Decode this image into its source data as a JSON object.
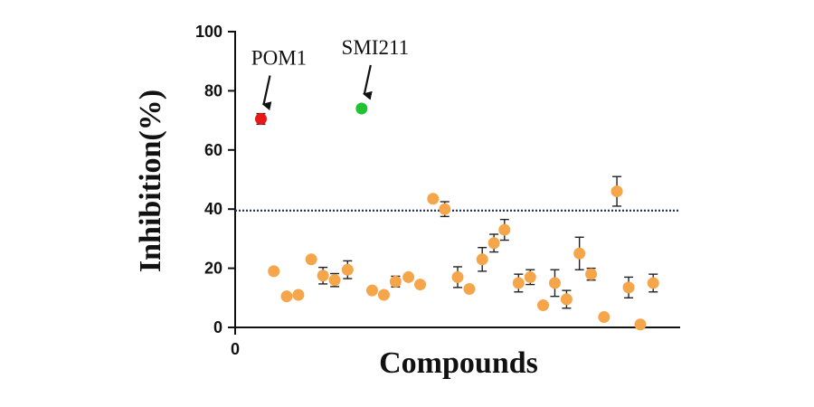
{
  "chart_data": {
    "type": "scatter",
    "xlabel": "Compounds",
    "ylabel": "Inhibition(%)",
    "ylim": [
      0,
      100
    ],
    "xlim": [
      0,
      38
    ],
    "yticks": [
      "0",
      "20",
      "40",
      "60",
      "80",
      "100"
    ],
    "xticks": [
      "0"
    ],
    "threshold": {
      "y": 39.5,
      "style": "dotted",
      "color": "#1f2d5c"
    },
    "controls": [
      {
        "label": "POM1",
        "x": 2.2,
        "y": 70.5,
        "err": 1.8,
        "color": "#e81818"
      },
      {
        "label": "SMI211",
        "x": 10.8,
        "y": 74,
        "err": 0,
        "color": "#22c232"
      }
    ],
    "series": [
      {
        "color": "#f5a54a",
        "points": [
          {
            "x": 3.3,
            "y": 19,
            "err": 0
          },
          {
            "x": 4.4,
            "y": 10.5,
            "err": 0
          },
          {
            "x": 5.4,
            "y": 11,
            "err": 0
          },
          {
            "x": 6.5,
            "y": 23,
            "err": 0
          },
          {
            "x": 7.5,
            "y": 17.5,
            "err": 2.8
          },
          {
            "x": 8.5,
            "y": 16,
            "err": 2.2
          },
          {
            "x": 9.6,
            "y": 19.5,
            "err": 3
          },
          {
            "x": 11.7,
            "y": 12.5,
            "err": 0
          },
          {
            "x": 12.7,
            "y": 11,
            "err": 0
          },
          {
            "x": 13.7,
            "y": 15.5,
            "err": 1.8
          },
          {
            "x": 14.8,
            "y": 17,
            "err": 0
          },
          {
            "x": 15.8,
            "y": 14.5,
            "err": 0
          },
          {
            "x": 16.9,
            "y": 43.5,
            "err": 0
          },
          {
            "x": 17.9,
            "y": 40,
            "err": 2.5
          },
          {
            "x": 19.0,
            "y": 17,
            "err": 3.5
          },
          {
            "x": 20.0,
            "y": 13,
            "err": 0
          },
          {
            "x": 21.1,
            "y": 23,
            "err": 4
          },
          {
            "x": 22.1,
            "y": 28.5,
            "err": 3
          },
          {
            "x": 23.0,
            "y": 33,
            "err": 3.5
          },
          {
            "x": 24.2,
            "y": 15,
            "err": 3
          },
          {
            "x": 25.2,
            "y": 17,
            "err": 2.5
          },
          {
            "x": 26.3,
            "y": 7.5,
            "err": 0
          },
          {
            "x": 27.3,
            "y": 15,
            "err": 4.5
          },
          {
            "x": 28.3,
            "y": 9.5,
            "err": 3
          },
          {
            "x": 29.4,
            "y": 25,
            "err": 5.5
          },
          {
            "x": 30.4,
            "y": 18,
            "err": 2
          },
          {
            "x": 31.5,
            "y": 3.5,
            "err": 0
          },
          {
            "x": 32.6,
            "y": 46,
            "err": 5
          },
          {
            "x": 33.6,
            "y": 13.5,
            "err": 3.5
          },
          {
            "x": 34.6,
            "y": 1,
            "err": 0
          },
          {
            "x": 35.7,
            "y": 15,
            "err": 3
          }
        ]
      }
    ]
  }
}
